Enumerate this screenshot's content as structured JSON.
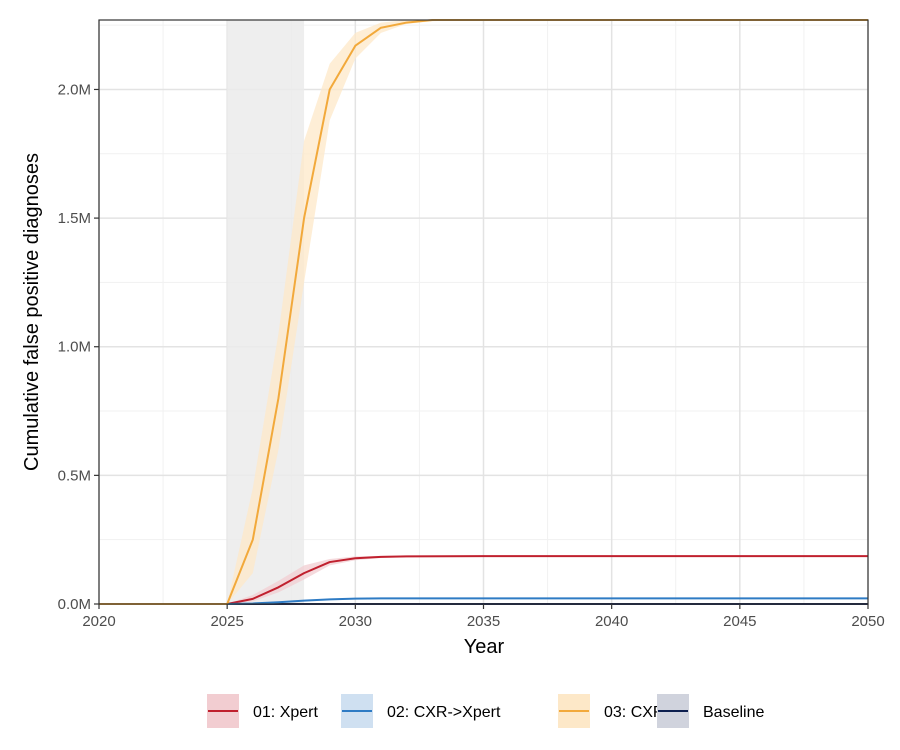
{
  "chart_data": {
    "type": "line",
    "xlabel": "Year",
    "ylabel": "Cumulative false positive diagnoses",
    "xlim": [
      2020,
      2050
    ],
    "ylim": [
      0,
      2.27
    ],
    "x_ticks": [
      2020,
      2025,
      2030,
      2035,
      2040,
      2045,
      2050
    ],
    "x_tick_labels": [
      "2020",
      "2025",
      "2030",
      "2035",
      "2040",
      "2045",
      "2050"
    ],
    "y_ticks": [
      0,
      0.5,
      1.0,
      1.5,
      2.0
    ],
    "y_tick_labels": [
      "0.0M",
      "0.5M",
      "1.0M",
      "1.5M",
      "2.0M"
    ],
    "y_unit": "millions",
    "grid": true,
    "legend_position": "bottom",
    "shaded_period": [
      2025,
      2028
    ],
    "shaded_color": "#ebebeb",
    "series": [
      {
        "name": "01: Xpert",
        "color": "#c0202e",
        "fill": "#f2cdd1",
        "x": [
          2020,
          2025,
          2026,
          2027,
          2028,
          2029,
          2030,
          2031,
          2032,
          2035,
          2040,
          2045,
          2050
        ],
        "y": [
          0,
          0,
          0.02,
          0.065,
          0.12,
          0.163,
          0.178,
          0.183,
          0.185,
          0.186,
          0.186,
          0.186,
          0.186
        ],
        "lower": [
          0,
          0,
          0.01,
          0.045,
          0.095,
          0.15,
          0.17,
          0.179,
          0.182,
          0.184,
          0.184,
          0.184,
          0.184
        ],
        "upper": [
          0,
          0,
          0.035,
          0.09,
          0.15,
          0.175,
          0.185,
          0.187,
          0.188,
          0.188,
          0.188,
          0.188,
          0.188
        ]
      },
      {
        "name": "02: CXR->Xpert",
        "color": "#2e7bc4",
        "fill": "#cfe0f1",
        "x": [
          2020,
          2025,
          2026,
          2027,
          2028,
          2029,
          2030,
          2031,
          2032,
          2035,
          2040,
          2045,
          2050
        ],
        "y": [
          0,
          0,
          0.002,
          0.007,
          0.013,
          0.018,
          0.021,
          0.022,
          0.022,
          0.022,
          0.022,
          0.022,
          0.022
        ],
        "lower": [
          0,
          0,
          0.001,
          0.005,
          0.011,
          0.016,
          0.019,
          0.021,
          0.021,
          0.021,
          0.021,
          0.021,
          0.021
        ],
        "upper": [
          0,
          0,
          0.004,
          0.009,
          0.015,
          0.02,
          0.023,
          0.024,
          0.024,
          0.024,
          0.024,
          0.024,
          0.024
        ]
      },
      {
        "name": "03: CXR",
        "color": "#f2a93b",
        "fill": "#fde8c8",
        "x": [
          2020,
          2025,
          2026,
          2027,
          2028,
          2029,
          2030,
          2031,
          2032,
          2033,
          2034,
          2035,
          2040,
          2045,
          2050
        ],
        "y": [
          0,
          0,
          0.25,
          0.8,
          1.5,
          2.0,
          2.17,
          2.24,
          2.26,
          2.27,
          2.27,
          2.27,
          2.27,
          2.27,
          2.27
        ],
        "lower": [
          0,
          0,
          0.12,
          0.6,
          1.25,
          1.88,
          2.12,
          2.22,
          2.255,
          2.265,
          2.27,
          2.27,
          2.27,
          2.27,
          2.27
        ],
        "upper": [
          0,
          0,
          0.45,
          1.05,
          1.8,
          2.1,
          2.22,
          2.26,
          2.27,
          2.27,
          2.27,
          2.27,
          2.27,
          2.27,
          2.27
        ]
      },
      {
        "name": "Baseline",
        "color": "#0d1f4f",
        "fill": "#d0d3dd",
        "x": [
          2020,
          2025,
          2030,
          2035,
          2040,
          2045,
          2050
        ],
        "y": [
          0,
          0,
          0,
          0,
          0,
          0,
          0
        ],
        "lower": [
          0,
          0,
          0,
          0,
          0,
          0,
          0
        ],
        "upper": [
          0,
          0,
          0,
          0,
          0,
          0,
          0
        ]
      }
    ]
  }
}
